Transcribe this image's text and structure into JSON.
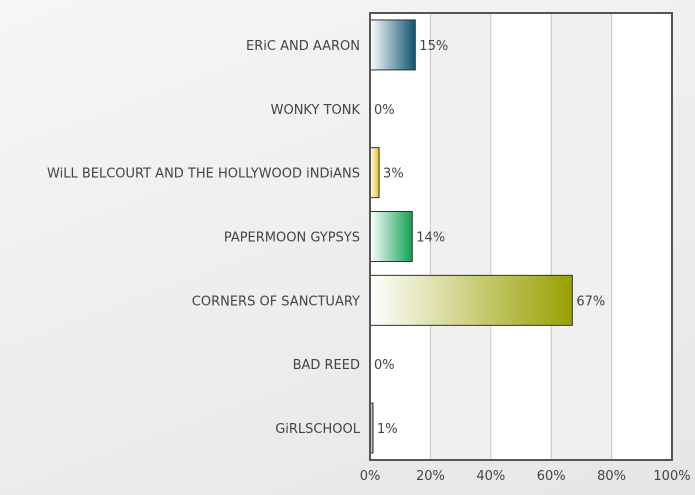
{
  "chart_data": {
    "type": "bar",
    "orientation": "horizontal",
    "categories": [
      "ERiC AND AARON",
      "WONKY TONK",
      "WiLL BELCOURT AND THE HOLLYWOOD iNDiANS",
      "PAPERMOON GYPSYS",
      "CORNERS OF SANCTUARY",
      "BAD REED",
      "GiRLSCHOOL"
    ],
    "values": [
      15,
      0,
      3,
      14,
      67,
      0,
      1
    ],
    "labels": [
      "15%",
      "0%",
      "3%",
      "14%",
      "67%",
      "0%",
      "1%"
    ],
    "colors": [
      "#0f5570",
      "#999999",
      "#e8c020",
      "#10a050",
      "#98a000",
      "#999999",
      "#a07898"
    ],
    "xlim": [
      0,
      100
    ],
    "xticks": [
      0,
      20,
      40,
      60,
      80,
      100
    ],
    "xtick_labels": [
      "0%",
      "20%",
      "40%",
      "60%",
      "80%",
      "100%"
    ],
    "title": "",
    "xlabel": "",
    "ylabel": "",
    "grid": true
  }
}
